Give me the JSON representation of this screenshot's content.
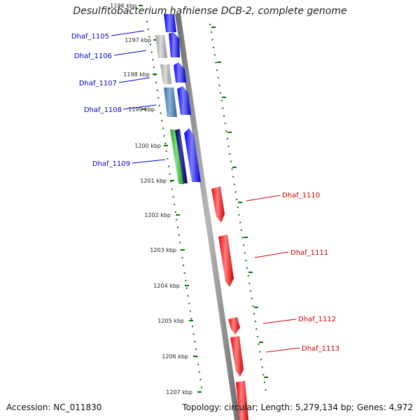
{
  "title": "Desulfitobacterium hafniense DCB-2, complete genome",
  "footer": {
    "accession": "Accession: NC_011830",
    "summary": "Topology: circular; Length: 5,279,134 bp; Genes: 4,972"
  },
  "colors": {
    "backbone": "#808080",
    "forward_gene": "#0000ff",
    "forward_gene_dark": "#000080",
    "reverse_gene": "#ff0000",
    "reverse_gene_left": "#b0b0b0",
    "reverse_gene_steelblue": "#4682b4",
    "reverse_gene_green": "#32cd32",
    "tick_green": "#007700",
    "label_blue": "#00008b",
    "label_red": "#cc0000"
  },
  "kbp_labels": [
    {
      "label": "1196 kbp"
    },
    {
      "label": "1197 kbp"
    },
    {
      "label": "1198 kbp"
    },
    {
      "label": "1199 kbp"
    },
    {
      "label": "1200 kbp"
    },
    {
      "label": "1201 kbp"
    },
    {
      "label": "1202 kbp"
    },
    {
      "label": "1203 kbp"
    },
    {
      "label": "1204 kbp"
    },
    {
      "label": "1205 kbp"
    },
    {
      "label": "1206 kbp"
    },
    {
      "label": "1207 kbp"
    }
  ],
  "gene_labels_left": [
    {
      "name": "Dhaf_1105"
    },
    {
      "name": "Dhaf_1106"
    },
    {
      "name": "Dhaf_1107"
    },
    {
      "name": "Dhaf_1108"
    },
    {
      "name": "Dhaf_1109"
    }
  ],
  "gene_labels_right": [
    {
      "name": "Dhaf_1110"
    },
    {
      "name": "Dhaf_1111"
    },
    {
      "name": "Dhaf_1112"
    },
    {
      "name": "Dhaf_1113"
    }
  ]
}
